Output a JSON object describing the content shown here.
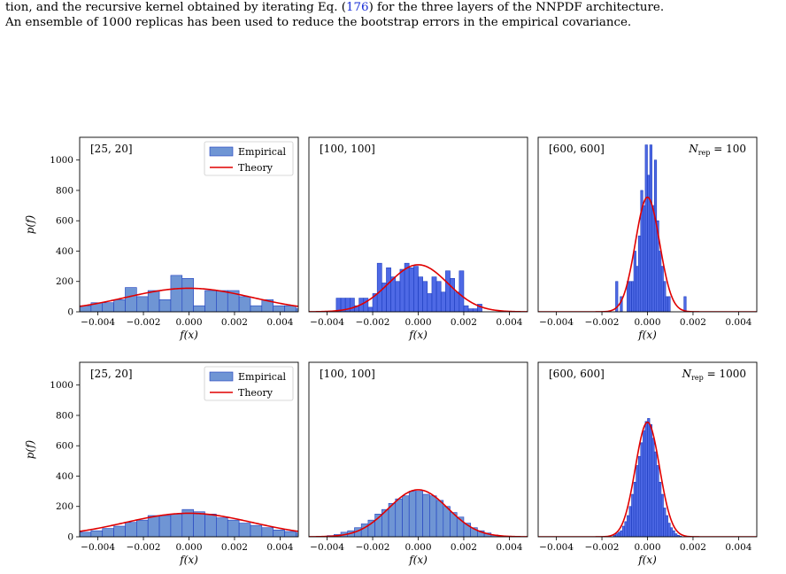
{
  "caption": {
    "line1_prefix": "tion, and the recursive kernel obtained by iterating Eq. (",
    "line1_ref": "176",
    "line1_suffix": ") for the three layers of the NNPDF architecture.",
    "line2": "An ensemble of 1000 replicas has been used to reduce the bootstrap errors in the empirical covariance."
  },
  "colors": {
    "hist_fill": "#6f95d4",
    "hist_fill_dense": "#2f4fe0",
    "hist_edge": "#1f3fbf",
    "theory_line": "#e00000",
    "axes": "#000000"
  },
  "chart_data": [
    {
      "type": "bar",
      "row": 0,
      "col": 0,
      "label": "[25, 20]",
      "xlabel": "f(x)",
      "ylabel": "p(f)",
      "xlim": [
        -0.0048,
        0.0048
      ],
      "ylim": [
        0,
        1150
      ],
      "xticks": [
        "−0.004",
        "−0.002",
        "0.000",
        "0.002",
        "0.004"
      ],
      "yticks": [
        "0",
        "200",
        "400",
        "600",
        "800",
        "1000"
      ],
      "legend": [
        "Empirical",
        "Theory"
      ],
      "legend_position": "top-right",
      "bin_edges": [
        -0.0053,
        -0.0048,
        -0.0043,
        -0.0038,
        -0.0033,
        -0.0028,
        -0.0023,
        -0.0018,
        -0.0013,
        -0.0008,
        -0.0003,
        0.0002,
        0.0007,
        0.0012,
        0.0017,
        0.0022,
        0.0027,
        0.0032,
        0.0037,
        0.0042,
        0.0047,
        0.0052
      ],
      "counts": [
        30,
        40,
        60,
        60,
        80,
        160,
        100,
        140,
        80,
        240,
        220,
        40,
        140,
        140,
        140,
        100,
        40,
        80,
        40,
        40,
        20
      ],
      "theory": {
        "mean": 0.0,
        "sigma": 0.0028,
        "peak": 155
      }
    },
    {
      "type": "bar",
      "row": 0,
      "col": 1,
      "label": "[100, 100]",
      "xlabel": "f(x)",
      "ylabel": "",
      "xlim": [
        -0.0048,
        0.0048
      ],
      "ylim": [
        0,
        1150
      ],
      "xticks": [
        "−0.004",
        "−0.002",
        "0.000",
        "0.002",
        "0.004"
      ],
      "yticks": [],
      "bin_edges": [
        -0.0036,
        -0.0034,
        -0.0032,
        -0.003,
        -0.0028,
        -0.0026,
        -0.0024,
        -0.0022,
        -0.002,
        -0.0018,
        -0.0016,
        -0.0014,
        -0.0012,
        -0.001,
        -0.0008,
        -0.0006,
        -0.0004,
        -0.0002,
        0.0,
        0.0002,
        0.0004,
        0.0006,
        0.0008,
        0.001,
        0.0012,
        0.0014,
        0.0016,
        0.0018,
        0.002,
        0.0022,
        0.0024,
        0.0026,
        0.0028
      ],
      "counts": [
        90,
        90,
        90,
        90,
        40,
        90,
        90,
        30,
        120,
        320,
        190,
        290,
        230,
        200,
        280,
        320,
        290,
        300,
        230,
        200,
        120,
        230,
        200,
        130,
        270,
        220,
        130,
        270,
        40,
        20,
        20,
        50
      ],
      "theory": {
        "mean": 0.0,
        "sigma": 0.0013,
        "peak": 310
      }
    },
    {
      "type": "bar",
      "row": 0,
      "col": 2,
      "label": "[600, 600]",
      "annotation": "N_rep = 100",
      "xlabel": "f(x)",
      "ylabel": "",
      "xlim": [
        -0.0048,
        0.0048
      ],
      "ylim": [
        0,
        1150
      ],
      "xticks": [
        "−0.004",
        "−0.002",
        "0.000",
        "0.002",
        "0.004"
      ],
      "yticks": [],
      "bin_edges": [
        -0.0014,
        -0.0013,
        -0.0012,
        -0.0011,
        -0.001,
        -0.0009,
        -0.0008,
        -0.0007,
        -0.0006,
        -0.0005,
        -0.0004,
        -0.0003,
        -0.0002,
        -0.0001,
        0.0,
        0.0001,
        0.0002,
        0.0003,
        0.0004,
        0.0005,
        0.0006,
        0.0007,
        0.0008,
        0.0009,
        0.001,
        0.0011,
        0.0012,
        0.0013,
        0.0014,
        0.0015,
        0.0016,
        0.0017
      ],
      "counts": [
        200,
        0,
        100,
        0,
        0,
        200,
        200,
        200,
        400,
        300,
        500,
        800,
        700,
        1100,
        900,
        1100,
        700,
        1000,
        600,
        400,
        300,
        200,
        100,
        100,
        0,
        0,
        0,
        0,
        0,
        0,
        100
      ],
      "theory": {
        "mean": 0.0,
        "sigma": 0.00053,
        "peak": 755
      }
    },
    {
      "type": "bar",
      "row": 1,
      "col": 0,
      "label": "[25, 20]",
      "xlabel": "f(x)",
      "ylabel": "p(f)",
      "xlim": [
        -0.0048,
        0.0048
      ],
      "ylim": [
        0,
        1150
      ],
      "xticks": [
        "−0.004",
        "−0.002",
        "0.000",
        "0.002",
        "0.004"
      ],
      "yticks": [
        "0",
        "200",
        "400",
        "600",
        "800",
        "1000"
      ],
      "legend": [
        "Empirical",
        "Theory"
      ],
      "legend_position": "top-right",
      "bin_edges": [
        -0.0053,
        -0.0048,
        -0.0043,
        -0.0038,
        -0.0033,
        -0.0028,
        -0.0023,
        -0.0018,
        -0.0013,
        -0.0008,
        -0.0003,
        0.0002,
        0.0007,
        0.0012,
        0.0017,
        0.0022,
        0.0027,
        0.0032,
        0.0037,
        0.0042,
        0.0047,
        0.0052
      ],
      "counts": [
        25,
        30,
        40,
        55,
        70,
        95,
        110,
        140,
        140,
        150,
        180,
        165,
        150,
        125,
        110,
        90,
        75,
        60,
        45,
        35,
        25
      ],
      "theory": {
        "mean": 0.0,
        "sigma": 0.0028,
        "peak": 155
      }
    },
    {
      "type": "bar",
      "row": 1,
      "col": 1,
      "label": "[100, 100]",
      "xlabel": "f(x)",
      "ylabel": "",
      "xlim": [
        -0.0048,
        0.0048
      ],
      "ylim": [
        0,
        1150
      ],
      "xticks": [
        "−0.004",
        "−0.002",
        "0.000",
        "0.002",
        "0.004"
      ],
      "yticks": [],
      "bin_edges": [
        -0.004,
        -0.0037,
        -0.0034,
        -0.0031,
        -0.0028,
        -0.0025,
        -0.0022,
        -0.0019,
        -0.0016,
        -0.0013,
        -0.001,
        -0.0007,
        -0.0004,
        -0.0001,
        0.0002,
        0.0005,
        0.0008,
        0.0011,
        0.0014,
        0.0017,
        0.002,
        0.0023,
        0.0026,
        0.0029,
        0.0032,
        0.0035,
        0.0038
      ],
      "counts": [
        8,
        15,
        30,
        40,
        60,
        85,
        110,
        150,
        180,
        220,
        250,
        270,
        300,
        300,
        280,
        270,
        240,
        200,
        160,
        130,
        90,
        60,
        40,
        25,
        12,
        6
      ],
      "theory": {
        "mean": 0.0,
        "sigma": 0.0013,
        "peak": 310
      }
    },
    {
      "type": "bar",
      "row": 1,
      "col": 2,
      "label": "[600, 600]",
      "annotation": "N_rep = 1000",
      "xlabel": "f(x)",
      "ylabel": "",
      "xlim": [
        -0.0048,
        0.0048
      ],
      "ylim": [
        0,
        1150
      ],
      "xticks": [
        "−0.004",
        "−0.002",
        "0.000",
        "0.002",
        "0.004"
      ],
      "yticks": [],
      "bin_edges": [
        -0.0015,
        -0.0014,
        -0.0013,
        -0.0012,
        -0.0011,
        -0.001,
        -0.0009,
        -0.0008,
        -0.0007,
        -0.0006,
        -0.0005,
        -0.0004,
        -0.0003,
        -0.0002,
        -0.0001,
        0.0,
        0.0001,
        0.0002,
        0.0003,
        0.0004,
        0.0005,
        0.0006,
        0.0007,
        0.0008,
        0.0009,
        0.001,
        0.0011,
        0.0012,
        0.0013,
        0.0014,
        0.0015
      ],
      "counts": [
        10,
        20,
        30,
        40,
        70,
        100,
        140,
        200,
        280,
        360,
        470,
        530,
        620,
        700,
        760,
        780,
        740,
        650,
        560,
        470,
        360,
        280,
        190,
        140,
        90,
        60,
        40,
        20,
        10,
        5
      ],
      "theory": {
        "mean": 0.0,
        "sigma": 0.00053,
        "peak": 755
      }
    }
  ]
}
